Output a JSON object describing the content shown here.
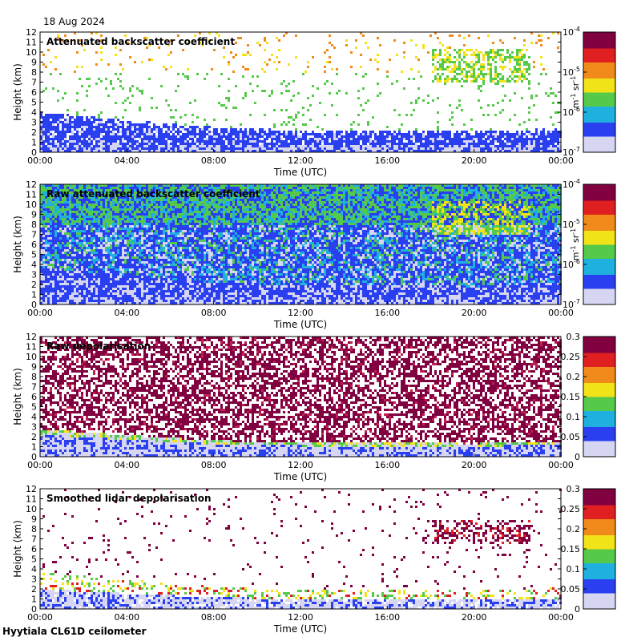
{
  "header": {
    "date": "18 Aug 2024"
  },
  "footer": {
    "site": "Hyytiala CL61D ceilometer"
  },
  "colors": {
    "clear": "#ffffff",
    "noise_low": "#d6d6f2",
    "blue": "#2a3ff0",
    "green": "#55c94a",
    "yellow": "#f2e218",
    "red": "#e02020",
    "maroon": "#800040"
  },
  "chart_data": [
    {
      "type": "heatmap",
      "title": "Attenuated backscatter coefficient",
      "xlabel": "Time (UTC)",
      "ylabel": "Height (km)",
      "x_ticks": [
        "00:00",
        "04:00",
        "08:00",
        "12:00",
        "16:00",
        "20:00",
        "00:00"
      ],
      "xlim_hours": [
        0,
        24
      ],
      "ylim": [
        0,
        12
      ],
      "y_ticks": [
        0,
        1,
        2,
        3,
        4,
        5,
        6,
        7,
        8,
        9,
        10,
        11,
        12
      ],
      "colorbar": {
        "scale": "log",
        "ticks": [
          "10-7",
          "10-6",
          "10-5",
          "10-4"
        ],
        "tick_base": "10",
        "tick_exps": [
          "-7",
          "-6",
          "-5",
          "-4"
        ],
        "units": "m-1 sr-1",
        "units_parts": [
          "m",
          "-1",
          " sr",
          "-1"
        ]
      },
      "features": {
        "boundary_layer_top_km": [
          3.8,
          3.0,
          2.3,
          2.0,
          2.0,
          1.9,
          2.2
        ],
        "high_cloud_layer": {
          "from_hours": 18,
          "to_hours": 22.5,
          "base_km": 7,
          "top_km": 10.5
        },
        "low_cloud_base_km": 1.0
      }
    },
    {
      "type": "heatmap",
      "title": "Raw attenuated backscatter coefficient",
      "xlabel": "Time (UTC)",
      "ylabel": "Height (km)",
      "x_ticks": [
        "00:00",
        "04:00",
        "08:00",
        "12:00",
        "16:00",
        "20:00",
        "00:00"
      ],
      "xlim_hours": [
        0,
        24
      ],
      "ylim": [
        0,
        12
      ],
      "y_ticks": [
        0,
        1,
        2,
        3,
        4,
        5,
        6,
        7,
        8,
        9,
        10,
        11,
        12
      ],
      "colorbar": {
        "scale": "log",
        "ticks": [
          "10-7",
          "10-6",
          "10-5",
          "10-4"
        ],
        "tick_base": "10",
        "tick_exps": [
          "-7",
          "-6",
          "-5",
          "-4"
        ],
        "units": "m-1 sr-1",
        "units_parts": [
          "m",
          "-1",
          " sr",
          "-1"
        ]
      }
    },
    {
      "type": "heatmap",
      "title": "Raw depolarisation",
      "xlabel": "Time (UTC)",
      "ylabel": "Height (km)",
      "x_ticks": [
        "00:00",
        "04:00",
        "08:00",
        "12:00",
        "16:00",
        "20:00",
        "00:00"
      ],
      "xlim_hours": [
        0,
        24
      ],
      "ylim": [
        0,
        12
      ],
      "y_ticks": [
        0,
        1,
        2,
        3,
        4,
        5,
        6,
        7,
        8,
        9,
        10,
        11,
        12
      ],
      "colorbar": {
        "scale": "linear",
        "ticks": [
          "0",
          "0.05",
          "0.1",
          "0.15",
          "0.2",
          "0.25",
          "0.3"
        ],
        "range": [
          0,
          0.3
        ]
      }
    },
    {
      "type": "heatmap",
      "title": "Smoothed lidar depolarisation",
      "xlabel": "Time (UTC)",
      "ylabel": "Height (km)",
      "x_ticks": [
        "00:00",
        "04:00",
        "08:00",
        "12:00",
        "16:00",
        "20:00",
        "00:00"
      ],
      "xlim_hours": [
        0,
        24
      ],
      "ylim": [
        0,
        12
      ],
      "y_ticks": [
        0,
        1,
        2,
        3,
        4,
        5,
        6,
        7,
        8,
        9,
        10,
        11,
        12
      ],
      "colorbar": {
        "scale": "linear",
        "ticks": [
          "0",
          "0.05",
          "0.1",
          "0.15",
          "0.2",
          "0.25",
          "0.3"
        ],
        "range": [
          0,
          0.3
        ]
      }
    }
  ]
}
